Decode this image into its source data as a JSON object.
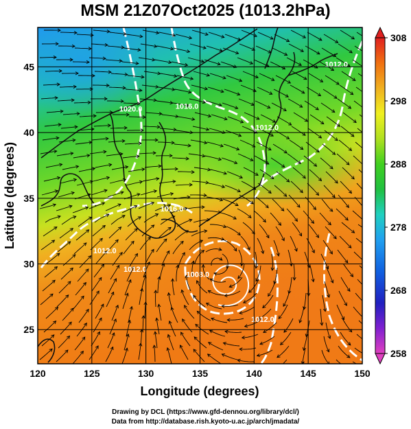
{
  "title": "MSM 21Z07Oct2025 (1013.2hPa)",
  "axes": {
    "xlabel": "Longitude (degrees)",
    "ylabel": "Latitude  (degrees)",
    "lon_range": [
      120,
      150
    ],
    "lat_range": [
      22.4,
      48
    ],
    "x_ticks": [
      120,
      125,
      130,
      135,
      140,
      145,
      150
    ],
    "y_ticks": [
      25,
      30,
      35,
      40,
      45
    ]
  },
  "colorbar": {
    "range": [
      258,
      308
    ],
    "ticks": [
      258,
      268,
      278,
      288,
      298,
      308
    ],
    "palette": [
      "#e040c0",
      "#8020d0",
      "#2020c0",
      "#1060e0",
      "#20a0f0",
      "#20d0c0",
      "#20c040",
      "#40d020",
      "#b0e020",
      "#f0f020",
      "#f0b020",
      "#f07010",
      "#e02020"
    ]
  },
  "isobars": [
    {
      "label": "1020.0",
      "lon": 128.6,
      "lat": 41.6
    },
    {
      "label": "1016.0",
      "lon": 133.8,
      "lat": 41.8
    },
    {
      "label": "1016.0",
      "lon": 132.4,
      "lat": 34.0
    },
    {
      "label": "1012.0",
      "lon": 126.2,
      "lat": 30.8
    },
    {
      "label": "1012.0",
      "lon": 129.0,
      "lat": 29.4
    },
    {
      "label": "1008.0",
      "lon": 134.8,
      "lat": 29.0
    },
    {
      "label": "1012.0",
      "lon": 141.2,
      "lat": 40.2
    },
    {
      "label": "1012.0",
      "lon": 147.6,
      "lat": 45.0
    },
    {
      "label": "1012.0",
      "lon": 140.8,
      "lat": 25.6
    }
  ],
  "cyclone_center": {
    "lon": 136.6,
    "lat": 30.0
  },
  "credits": {
    "line1": "Drawing by DCL (https://www.gfd-dennou.org/library/dcl/)",
    "line2": "Data from http://database.rish.kyoto-u.ac.jp/arch/jmadata/"
  }
}
